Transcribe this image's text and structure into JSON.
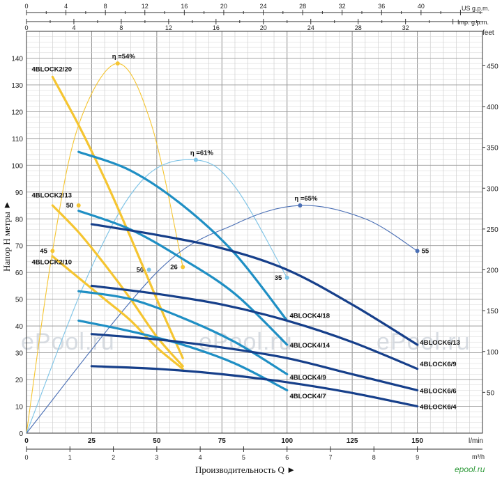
{
  "chart_data": {
    "type": "line",
    "xlabel": "Производительность Q ►",
    "ylabel": "Напор Н метры ►",
    "x_unit": "l/min",
    "x_unit2": "m³/h",
    "y_unit_right": "feet",
    "top_unit1": "US g.p.m.",
    "top_unit2": "Imp. g.p.m.",
    "xlim": [
      0,
      175
    ],
    "ylim": [
      0,
      150
    ],
    "x_ticks_lmin": [
      "0",
      "25",
      "50",
      "75",
      "100",
      "125",
      "150"
    ],
    "x_ticks_m3h": [
      "0",
      "1",
      "2",
      "3",
      "4",
      "5",
      "6",
      "7",
      "8",
      "9"
    ],
    "us_gpm_ticks": [
      "0",
      "4",
      "8",
      "12",
      "16",
      "20",
      "24",
      "28",
      "32",
      "36",
      "40"
    ],
    "imp_gpm_ticks": [
      "0",
      "4",
      "8",
      "12",
      "16",
      "20",
      "24",
      "28",
      "32"
    ],
    "y_ticks": [
      "0",
      "10",
      "20",
      "30",
      "40",
      "50",
      "60",
      "70",
      "80",
      "90",
      "100",
      "110",
      "120",
      "130",
      "140"
    ],
    "feet_ticks": [
      "50",
      "100",
      "150",
      "200",
      "250",
      "300",
      "350",
      "400",
      "450"
    ],
    "watermark": "ePool.ru",
    "logo": "epool.ru",
    "series": [
      {
        "name": "4BLOCK2/20",
        "color": "#f5c531",
        "x": [
          10,
          20,
          30,
          40,
          50,
          60
        ],
        "y": [
          133,
          115,
          95,
          73,
          50,
          28
        ],
        "label_at": [
          2,
          135
        ]
      },
      {
        "name": "4BLOCK2/13",
        "color": "#f5c531",
        "x": [
          10,
          20,
          30,
          40,
          50,
          60
        ],
        "y": [
          85,
          75,
          63,
          50,
          36,
          25
        ],
        "label_at": [
          2,
          88
        ]
      },
      {
        "name": "4BLOCK2/10",
        "color": "#f5c531",
        "x": [
          10,
          20,
          30,
          40,
          50,
          60
        ],
        "y": [
          66,
          58,
          50,
          42,
          32,
          24
        ],
        "label_at": [
          2,
          63
        ]
      },
      {
        "name": "4BLOCK4/18",
        "color": "#1f8fc4",
        "x": [
          20,
          40,
          60,
          80,
          100
        ],
        "y": [
          105,
          98,
          85,
          67,
          42
        ],
        "label_at": [
          101,
          43
        ]
      },
      {
        "name": "4BLOCK4/14",
        "color": "#1f8fc4",
        "x": [
          20,
          40,
          60,
          80,
          100
        ],
        "y": [
          83,
          76,
          65,
          52,
          33
        ],
        "label_at": [
          101,
          32
        ]
      },
      {
        "name": "4BLOCK4/9",
        "color": "#1f8fc4",
        "x": [
          20,
          40,
          60,
          80,
          100
        ],
        "y": [
          53,
          50,
          43,
          34,
          22
        ],
        "label_at": [
          101,
          20
        ]
      },
      {
        "name": "4BLOCK4/7",
        "color": "#1f8fc4",
        "x": [
          20,
          40,
          60,
          80,
          100
        ],
        "y": [
          42,
          38,
          33,
          26,
          16
        ],
        "label_at": [
          101,
          13
        ]
      },
      {
        "name": "4BLOCK6/13",
        "color": "#163f8a",
        "x": [
          25,
          50,
          75,
          100,
          125,
          150
        ],
        "y": [
          78,
          74,
          69,
          61,
          48,
          33
        ],
        "label_at": [
          151,
          33
        ]
      },
      {
        "name": "4BLOCK6/9",
        "color": "#163f8a",
        "x": [
          25,
          50,
          75,
          100,
          125,
          150
        ],
        "y": [
          55,
          52,
          48,
          42,
          34,
          24
        ],
        "label_at": [
          151,
          25
        ]
      },
      {
        "name": "4BLOCK6/6",
        "color": "#163f8a",
        "x": [
          25,
          50,
          75,
          100,
          125,
          150
        ],
        "y": [
          37,
          35,
          32,
          28,
          22,
          16
        ],
        "label_at": [
          151,
          15
        ]
      },
      {
        "name": "4BLOCK6/4",
        "color": "#163f8a",
        "x": [
          25,
          50,
          75,
          100,
          125,
          150
        ],
        "y": [
          25,
          24,
          22,
          19,
          15,
          10
        ],
        "label_at": [
          151,
          9
        ]
      }
    ],
    "efficiency_curves": [
      {
        "label": "η =54%",
        "color": "#f5c531",
        "x": [
          0,
          10,
          20,
          35,
          48,
          60
        ],
        "y": [
          0,
          68,
          115,
          138,
          115,
          62
        ],
        "peak": [
          35,
          138
        ],
        "points": [
          {
            "label": "45",
            "x": 10,
            "y": 68
          },
          {
            "label": "50",
            "x": 20,
            "y": 85
          },
          {
            "label": "26",
            "x": 60,
            "y": 62
          }
        ]
      },
      {
        "label": "η =61%",
        "color": "#7cc3e6",
        "x": [
          0,
          25,
          45,
          65,
          80,
          100
        ],
        "y": [
          0,
          62,
          95,
          102,
          92,
          58
        ],
        "peak": [
          65,
          102
        ],
        "points": [
          {
            "label": "50",
            "x": 47,
            "y": 61
          },
          {
            "label": "35",
            "x": 100,
            "y": 58
          }
        ]
      },
      {
        "label": "η =65%",
        "color": "#4a6fb5",
        "x": [
          0,
          50,
          80,
          105,
          130,
          150
        ],
        "y": [
          0,
          60,
          78,
          85,
          80,
          68
        ],
        "peak": [
          105,
          85
        ],
        "points": [
          {
            "label": "55",
            "x": 150,
            "y": 68
          }
        ]
      }
    ]
  }
}
